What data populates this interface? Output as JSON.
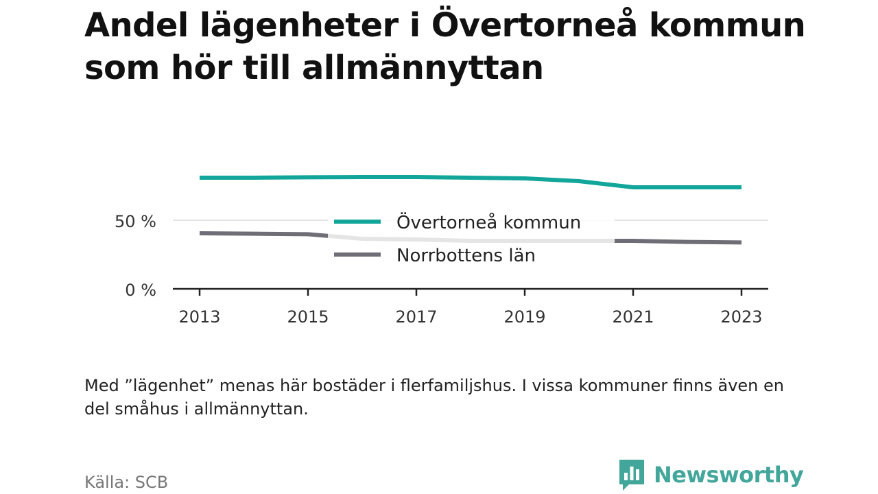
{
  "title": "Andel lägenheter i Övertorneå kommun som hör till allmännyttan",
  "note": "Med ”lägenhet” menas här bostäder i flerfamiljshus. I vissa kommuner finns även en del småhus i allmännyttan.",
  "source": "Källa: SCB",
  "brand": {
    "name": "Newsworthy",
    "logo_icon": "bar-chart-speech-bubble-icon",
    "color": "#43a69b"
  },
  "chart_data": {
    "type": "line",
    "title": "",
    "xlabel": "",
    "ylabel": "",
    "ylim": [
      0,
      100
    ],
    "xlim": [
      2013,
      2023
    ],
    "x": [
      2013,
      2014,
      2015,
      2016,
      2017,
      2018,
      2019,
      2020,
      2021,
      2022,
      2023
    ],
    "yticks": [
      0,
      50
    ],
    "ytick_labels": [
      "0 %",
      "50 %"
    ],
    "xticks": [
      2013,
      2015,
      2017,
      2019,
      2021,
      2023
    ],
    "xtick_labels": [
      "2013",
      "2015",
      "2017",
      "2019",
      "2021",
      "2023"
    ],
    "grid": true,
    "legend_position": "center",
    "series": [
      {
        "name": "Övertorneå kommun",
        "color": "#12a69b",
        "values": [
          81,
          81,
          81.3,
          81.5,
          81.5,
          81,
          80.5,
          78.5,
          74,
          74,
          74
        ]
      },
      {
        "name": "Norrbottens län",
        "color": "#6f6e76",
        "values": [
          40.5,
          40.2,
          39.8,
          36.5,
          36,
          35,
          35,
          35,
          35,
          34.2,
          33.8
        ]
      }
    ]
  }
}
